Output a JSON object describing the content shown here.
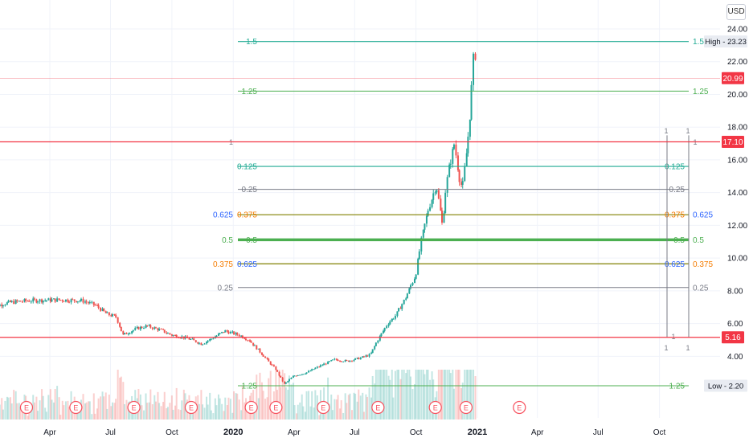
{
  "currency_button": "USD",
  "colors": {
    "up": "#26a69a",
    "down": "#ef5350",
    "accent_red": "#f23645",
    "teal": "#22ab94",
    "green": "#4caf50",
    "blue": "#2962ff",
    "grey": "#787b86",
    "olive": "#808000",
    "orange": "#f57c00",
    "earnings_marker": "#f7525f"
  },
  "chart_data": {
    "type": "candlestick",
    "title": "",
    "xlabel": "",
    "ylabel": "",
    "currency": "USD",
    "ylim": [
      2.2,
      24.6
    ],
    "y_ticks": [
      "4.00",
      "6.00",
      "8.00",
      "10.00",
      "12.00",
      "14.00",
      "16.00",
      "18.00",
      "20.00",
      "22.00",
      "24.00"
    ],
    "x_ticks": [
      "Apr",
      "Jul",
      "Oct",
      "2020",
      "Apr",
      "Jul",
      "Oct",
      "2021",
      "Apr",
      "Jul",
      "Oct"
    ],
    "price_path": [
      [
        "2019-01-01",
        7.0
      ],
      [
        "2019-02-01",
        7.3
      ],
      [
        "2019-03-01",
        7.4
      ],
      [
        "2019-04-15",
        7.45
      ],
      [
        "2019-05-20",
        7.4
      ],
      [
        "2019-06-10",
        7.1
      ],
      [
        "2019-06-25",
        6.6
      ],
      [
        "2019-07-10",
        6.4
      ],
      [
        "2019-07-20",
        5.3
      ],
      [
        "2019-08-10",
        5.7
      ],
      [
        "2019-08-25",
        5.85
      ],
      [
        "2019-09-15",
        5.6
      ],
      [
        "2019-10-01",
        5.3
      ],
      [
        "2019-10-15",
        5.2
      ],
      [
        "2019-11-01",
        5.0
      ],
      [
        "2019-11-15",
        4.75
      ],
      [
        "2019-12-01",
        5.1
      ],
      [
        "2019-12-20",
        5.55
      ],
      [
        "2020-01-10",
        5.3
      ],
      [
        "2020-01-25",
        5.0
      ],
      [
        "2020-02-10",
        4.3
      ],
      [
        "2020-02-25",
        3.6
      ],
      [
        "2020-03-05",
        3.2
      ],
      [
        "2020-03-18",
        2.3
      ],
      [
        "2020-04-01",
        2.8
      ],
      [
        "2020-04-20",
        3.0
      ],
      [
        "2020-05-10",
        3.4
      ],
      [
        "2020-06-01",
        3.8
      ],
      [
        "2020-06-20",
        3.7
      ],
      [
        "2020-07-10",
        3.9
      ],
      [
        "2020-07-25",
        4.1
      ],
      [
        "2020-08-05",
        5.0
      ],
      [
        "2020-08-20",
        6.0
      ],
      [
        "2020-09-01",
        6.5
      ],
      [
        "2020-09-15",
        7.5
      ],
      [
        "2020-10-01",
        9.0
      ],
      [
        "2020-10-10",
        11.2
      ],
      [
        "2020-10-20",
        13.0
      ],
      [
        "2020-11-01",
        14.5
      ],
      [
        "2020-11-10",
        12.0
      ],
      [
        "2020-11-15",
        14.2
      ],
      [
        "2020-11-20",
        15.5
      ],
      [
        "2020-11-28",
        17.0
      ],
      [
        "2020-12-05",
        15.0
      ],
      [
        "2020-12-10",
        14.2
      ],
      [
        "2020-12-15",
        16.0
      ],
      [
        "2020-12-20",
        18.0
      ],
      [
        "2020-12-24",
        20.5
      ],
      [
        "2020-12-28",
        23.2
      ],
      [
        "2020-12-31",
        20.99
      ]
    ],
    "earnings_markers": [
      "2019-02-25",
      "2019-05-10",
      "2019-08-05",
      "2019-10-30",
      "2020-01-28",
      "2020-03-05",
      "2020-05-15",
      "2020-08-05",
      "2020-10-30",
      "2020-12-15",
      "2021-03-05"
    ],
    "earnings_label": "E",
    "last_price": {
      "label": "20.99",
      "value": 20.99
    },
    "price_lines": [
      {
        "label": "17.10",
        "value": 17.1
      },
      {
        "label": "5.16",
        "value": 5.16
      }
    ],
    "high_label": {
      "text": "High - 23.23",
      "value": 23.23
    },
    "low_label": {
      "text": "Low - 2.20",
      "value": 2.2
    },
    "fib_levels": [
      {
        "value": 23.23,
        "color": "#22ab94",
        "width": 1.2,
        "labels": [
          {
            "text": "1.5",
            "pos": "left"
          },
          {
            "text": "1.5",
            "pos": "right"
          }
        ]
      },
      {
        "value": 20.2,
        "color": "#4caf50",
        "width": 1,
        "labels": [
          {
            "text": "1.25",
            "pos": "left"
          },
          {
            "text": "1.25",
            "pos": "right"
          }
        ]
      },
      {
        "value": 15.6,
        "color": "#22ab94",
        "width": 1.2,
        "labels": [
          {
            "text": "0.125",
            "pos": "left"
          },
          {
            "text": "0.125",
            "pos": "mid"
          }
        ]
      },
      {
        "value": 14.2,
        "color": "#787b86",
        "width": 1,
        "labels": [
          {
            "text": "0.25",
            "pos": "left"
          },
          {
            "text": "0.25",
            "pos": "mid"
          }
        ]
      },
      {
        "value": 12.65,
        "color": "#808000",
        "width": 1.2,
        "labels": [
          {
            "text": "0.625",
            "pos": "farleft",
            "color": "#2962ff"
          },
          {
            "text": "0.375",
            "pos": "left",
            "color": "#f57c00"
          },
          {
            "text": "0.375",
            "pos": "mid",
            "color": "#f57c00"
          },
          {
            "text": "0.625",
            "pos": "right",
            "color": "#2962ff"
          }
        ]
      },
      {
        "value": 11.12,
        "color": "#4caf50",
        "width": 3.5,
        "labels": [
          {
            "text": "0.5",
            "pos": "farleft"
          },
          {
            "text": "0.5",
            "pos": "left"
          },
          {
            "text": "0.5",
            "pos": "mid"
          },
          {
            "text": "0.5",
            "pos": "right"
          }
        ]
      },
      {
        "value": 9.65,
        "color": "#808000",
        "width": 1.2,
        "labels": [
          {
            "text": "0.375",
            "pos": "farleft",
            "color": "#f57c00"
          },
          {
            "text": "0.625",
            "pos": "left",
            "color": "#2962ff"
          },
          {
            "text": "0.625",
            "pos": "mid",
            "color": "#2962ff"
          },
          {
            "text": "0.375",
            "pos": "right",
            "color": "#f57c00"
          }
        ]
      },
      {
        "value": 8.2,
        "color": "#787b86",
        "width": 1,
        "labels": [
          {
            "text": "0.25",
            "pos": "farleft"
          },
          {
            "text": "0.25",
            "pos": "right"
          }
        ]
      },
      {
        "value": 2.2,
        "color": "#4caf50",
        "width": 1,
        "labels": [
          {
            "text": "1.25",
            "pos": "left"
          },
          {
            "text": "1.25",
            "pos": "mid"
          }
        ]
      }
    ],
    "fib_vertical_labels": [
      "1",
      "1",
      "1",
      "1",
      "1",
      "1",
      "1",
      "1"
    ],
    "fib_one_label": "1"
  }
}
